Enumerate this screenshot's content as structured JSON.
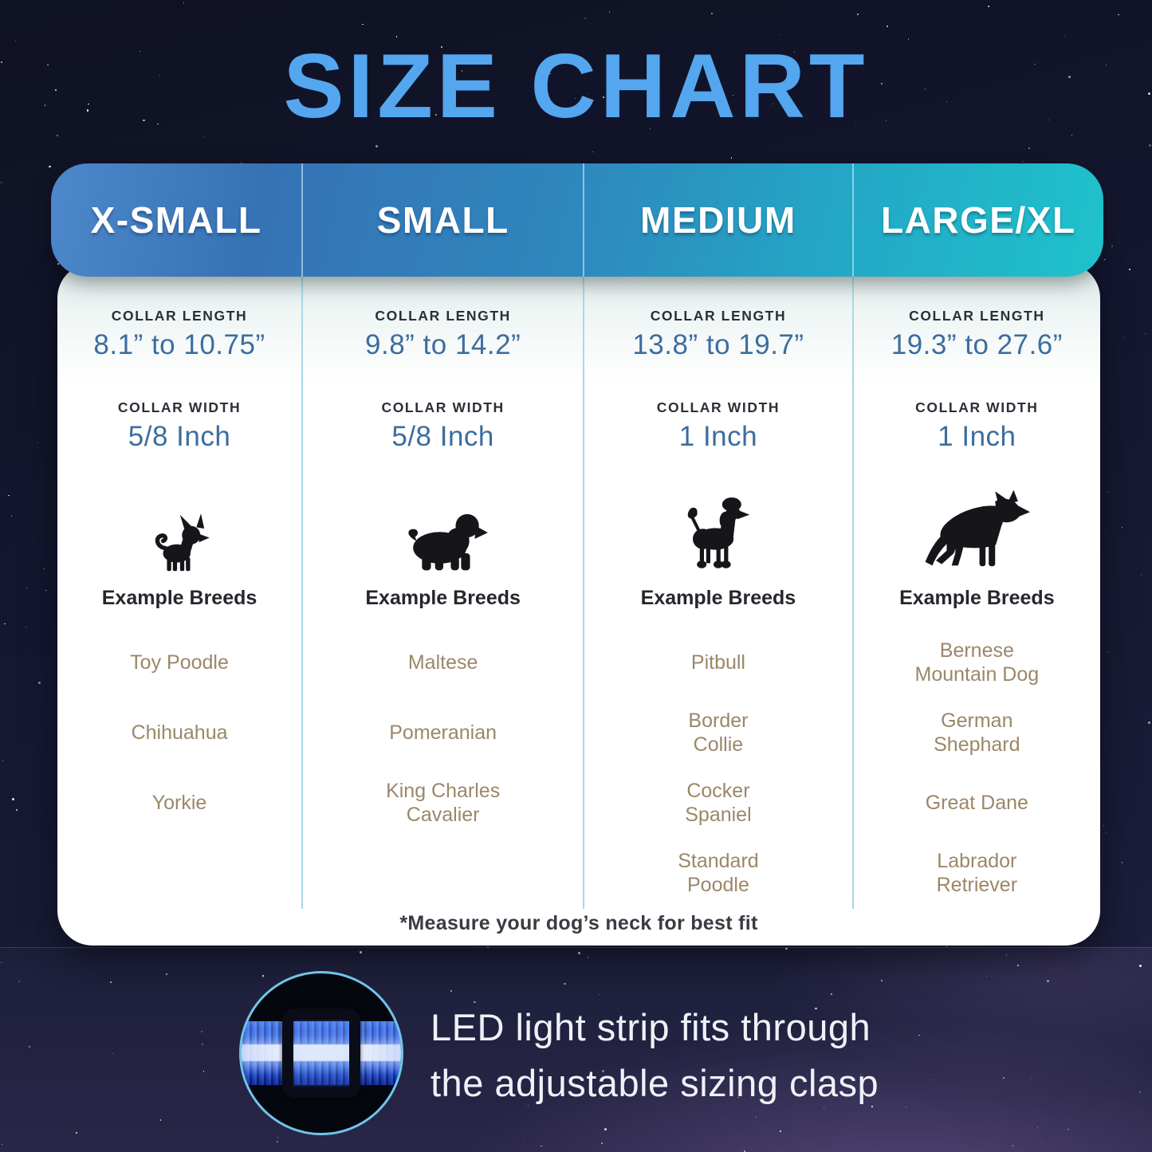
{
  "title": "SIZE CHART",
  "labels": {
    "length": "COLLAR LENGTH",
    "width": "COLLAR WIDTH",
    "breeds": "Example Breeds"
  },
  "sizes": [
    {
      "name": "X-SMALL",
      "collar_length": "8.1” to 10.75”",
      "collar_width": "5/8 Inch",
      "icon": "chihuahua-silhouette",
      "breeds": [
        "Toy Poodle",
        "Chihuahua",
        "Yorkie"
      ]
    },
    {
      "name": "SMALL",
      "collar_length": "9.8” to 14.2”",
      "collar_width": "5/8 Inch",
      "icon": "cavalier-spaniel-silhouette",
      "breeds": [
        "Maltese",
        "Pomeranian",
        "King Charles\nCavalier"
      ]
    },
    {
      "name": "MEDIUM",
      "collar_length": "13.8” to 19.7”",
      "collar_width": "1 Inch",
      "icon": "poodle-silhouette",
      "breeds": [
        "Pitbull",
        "Border\nCollie",
        "Cocker\nSpaniel",
        "Standard\nPoodle"
      ]
    },
    {
      "name": "LARGE/XL",
      "collar_length": "19.3” to 27.6”",
      "collar_width": "1 Inch",
      "icon": "german-shepherd-silhouette",
      "breeds": [
        "Bernese\nMountain Dog",
        "German\nShephard",
        "Great Dane",
        "Labrador\nRetriever"
      ]
    }
  ],
  "footnote": "*Measure your dog’s neck for best fit",
  "callout": {
    "text": "LED light strip fits through\nthe adjustable sizing clasp",
    "image": "collar-led-clasp-photo"
  },
  "colors": {
    "title_blue": "#54a6ef",
    "header_gradient_start": "#3672b4",
    "header_gradient_end": "#1fc2cb",
    "value_blue": "#3c6d9e",
    "breed_tan": "#9b8768",
    "divider_blue": "#a9d7eb",
    "circle_ring": "#70c4ea",
    "background_navy": "#141731"
  },
  "chart_data": {
    "type": "table",
    "title": "SIZE CHART",
    "columns": [
      "X-SMALL",
      "SMALL",
      "MEDIUM",
      "LARGE/XL"
    ],
    "rows": [
      {
        "label": "COLLAR LENGTH",
        "values": [
          "8.1” to 10.75”",
          "9.8” to 14.2”",
          "13.8” to 19.7”",
          "19.3” to 27.6”"
        ]
      },
      {
        "label": "COLLAR WIDTH",
        "values": [
          "5/8 Inch",
          "5/8 Inch",
          "1 Inch",
          "1 Inch"
        ]
      },
      {
        "label": "Example Breeds",
        "values": [
          [
            "Toy Poodle",
            "Chihuahua",
            "Yorkie"
          ],
          [
            "Maltese",
            "Pomeranian",
            "King Charles Cavalier"
          ],
          [
            "Pitbull",
            "Border Collie",
            "Cocker Spaniel",
            "Standard Poodle"
          ],
          [
            "Bernese Mountain Dog",
            "German Shephard",
            "Great Dane",
            "Labrador Retriever"
          ]
        ]
      }
    ],
    "footnote": "*Measure your dog’s neck for best fit"
  }
}
